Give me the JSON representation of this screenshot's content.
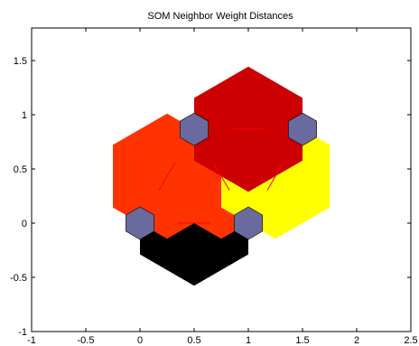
{
  "chart_data": {
    "type": "hexagonal-grid",
    "title": "SOM Neighbor Weight Distances",
    "xlim": [
      -1,
      2.5
    ],
    "ylim": [
      -1,
      1.8
    ],
    "xticks": [
      -1,
      -0.5,
      0,
      0.5,
      1,
      1.5,
      2,
      2.5
    ],
    "yticks": [
      -1,
      -0.5,
      0,
      0.5,
      1,
      1.5
    ],
    "xtick_labels": [
      "-1",
      "-0.5",
      "0",
      "0.5",
      "1",
      "1.5",
      "2",
      "2.5"
    ],
    "ytick_labels": [
      "-1",
      "-0.5",
      "0",
      "0.5",
      "1",
      "1.5"
    ],
    "grid": false,
    "neurons": [
      {
        "name": "neuron-1",
        "x": 0,
        "y": 0
      },
      {
        "name": "neuron-2",
        "x": 1,
        "y": 0
      },
      {
        "name": "neuron-3",
        "x": 0.5,
        "y": 0.866
      },
      {
        "name": "neuron-4",
        "x": 1.5,
        "y": 0.866
      }
    ],
    "distance_cells": [
      {
        "name": "distance-cell-1-2",
        "x": 0.5,
        "y": 0,
        "color": "#000000"
      },
      {
        "name": "distance-cell-1-3",
        "x": 0.25,
        "y": 0.433,
        "color": "#ff3300"
      },
      {
        "name": "distance-cell-2-3",
        "x": 0.75,
        "y": 0.433,
        "color": "#ff3300"
      },
      {
        "name": "distance-cell-2-4",
        "x": 1.25,
        "y": 0.433,
        "color": "#ffff00"
      },
      {
        "name": "distance-cell-3-4",
        "x": 1,
        "y": 0.866,
        "color": "#cc0000"
      }
    ],
    "colors": {
      "neuron_fill": "#6a6a9e",
      "neuron_edge": "#000000",
      "connection_line": "#ff0000",
      "axes_edge": "#000000"
    }
  }
}
